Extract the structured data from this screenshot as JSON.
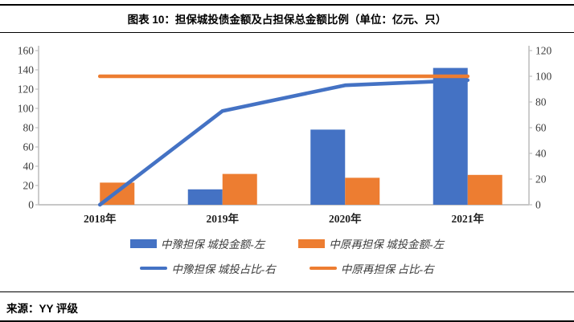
{
  "header": {
    "title": "图表 10：担保城投债金额及占担保总金额比例（单位：亿元、只）"
  },
  "footer": {
    "source_label": "来源：YY 评级"
  },
  "colors": {
    "bar_blue": "#4472C4",
    "bar_orange": "#ED7D31",
    "axis_line": "#BFBFBF",
    "tick_text": "#3B3B3B"
  },
  "chart_data": {
    "type": "combo-bar-line",
    "title": "担保城投债金额及占担保总金额比例",
    "unit": "亿元、只",
    "categories": [
      "2018年",
      "2019年",
      "2020年",
      "2021年"
    ],
    "series": [
      {
        "name": "中豫担保 城投金额-左",
        "type": "bar",
        "axis": "left",
        "color": "#4472C4",
        "values": [
          0,
          16,
          78,
          142
        ]
      },
      {
        "name": "中原再担保 城投金额-左",
        "type": "bar",
        "axis": "left",
        "color": "#ED7D31",
        "values": [
          23,
          32,
          28,
          31
        ]
      },
      {
        "name": "中豫担保 城投占比-右",
        "type": "line",
        "axis": "right",
        "color": "#4472C4",
        "values": [
          0,
          73,
          93,
          97
        ]
      },
      {
        "name": "中原再担保 占比-右",
        "type": "line",
        "axis": "right",
        "color": "#ED7D31",
        "values": [
          100,
          100,
          100,
          100
        ]
      }
    ],
    "left_axis": {
      "min": 0,
      "max": 160,
      "step": 20
    },
    "right_axis": {
      "min": 0,
      "max": 120,
      "step": 20
    },
    "grid": false,
    "legend_position": "bottom"
  }
}
